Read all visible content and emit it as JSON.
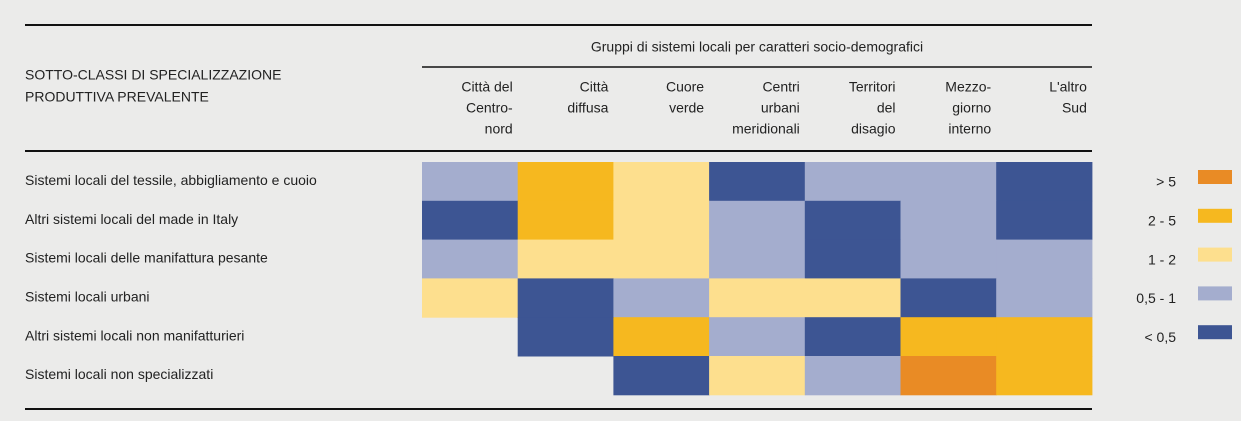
{
  "header": {
    "group_title": "Gruppi di sistemi locali per caratteri socio-demografici",
    "row_header": [
      "SOTTO-CLASSI DI SPECIALIZZAZIONE",
      "PRODUTTIVA PREVALENTE"
    ],
    "columns": [
      [
        "Città del",
        "Centro-",
        "nord"
      ],
      [
        "Città",
        "diffusa"
      ],
      [
        "Cuore",
        "verde"
      ],
      [
        "Centri",
        "urbani",
        "meridionali"
      ],
      [
        "Territori",
        "del",
        "disagio"
      ],
      [
        "Mezzo-",
        "giorno",
        "interno"
      ],
      [
        "L'altro",
        "Sud"
      ]
    ]
  },
  "legend": [
    {
      "label": "> 5",
      "color": "#e98b25"
    },
    {
      "label": "2 - 5",
      "color": "#f6b81f"
    },
    {
      "label": "1 - 2",
      "color": "#fddf8e"
    },
    {
      "label": "0,5 - 1",
      "color": "#a4adce"
    },
    {
      "label": "< 0,5",
      "color": "#3d5593"
    }
  ],
  "table": {
    "rows": [
      {
        "label": "Sistemi locali del tessile, abbigliamento e cuoio",
        "cells": [
          "0,5 - 1",
          "2 - 5",
          "1 - 2",
          "< 0,5",
          "0,5 - 1",
          "0,5 - 1",
          "< 0,5"
        ]
      },
      {
        "label": "Altri sistemi locali del made in Italy",
        "cells": [
          "< 0,5",
          "2 - 5",
          "1 - 2",
          "0,5 - 1",
          "< 0,5",
          "0,5 - 1",
          "< 0,5"
        ]
      },
      {
        "label": "Sistemi locali delle manifattura pesante",
        "cells": [
          "0,5 - 1",
          "1 - 2",
          "1 - 2",
          "0,5 - 1",
          "< 0,5",
          "0,5 - 1",
          "0,5 - 1"
        ]
      },
      {
        "label": "Sistemi locali urbani",
        "cells": [
          "1 - 2",
          "< 0,5",
          "0,5 - 1",
          "1 - 2",
          "1 - 2",
          "< 0,5",
          "0,5 - 1"
        ]
      },
      {
        "label": "Altri sistemi locali non manifatturieri",
        "cells": [
          null,
          "< 0,5",
          "2 - 5",
          "0,5 - 1",
          "< 0,5",
          "2 - 5",
          "2 - 5"
        ]
      },
      {
        "label": "Sistemi locali non specializzati",
        "cells": [
          null,
          null,
          "< 0,5",
          "1 - 2",
          "0,5 - 1",
          "> 5",
          "2 - 5"
        ]
      }
    ]
  }
}
